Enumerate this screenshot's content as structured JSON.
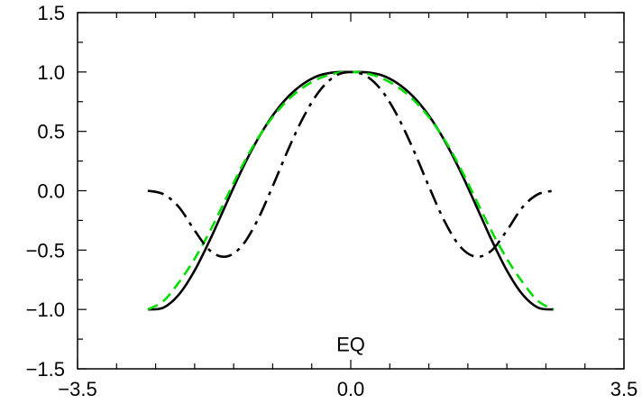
{
  "chart_data": {
    "type": "line",
    "title": "",
    "xlabel": "",
    "ylabel": "",
    "xlim": [
      -3.5,
      3.5
    ],
    "ylim": [
      -1.5,
      1.5
    ],
    "grid": false,
    "legend": "none",
    "x_ticks": [
      -3.5,
      0.0,
      3.5
    ],
    "x_tick_labels": [
      "−3.5",
      "0.0",
      "3.5"
    ],
    "y_ticks": [
      1.5,
      1.0,
      0.5,
      0.0,
      -0.5,
      -1.0,
      -1.5
    ],
    "y_tick_labels": [
      "1.5",
      "1.0",
      "0.5",
      "0.0",
      "−0.5",
      "−1.0",
      "−1.5"
    ],
    "annotations": [
      {
        "text": "EQ",
        "x": 0.0,
        "y": -1.29
      }
    ],
    "series": [
      {
        "color": "#000000",
        "style": "solid",
        "x": [
          -2.6,
          -2.4,
          -2.2,
          -2.0,
          -1.8,
          -1.6,
          -1.4,
          -1.2,
          -1.0,
          -0.8,
          -0.6,
          -0.4,
          -0.2,
          0.0,
          0.2,
          0.4,
          0.6,
          0.8,
          1.0,
          1.2,
          1.4,
          1.6,
          1.8,
          2.0,
          2.2,
          2.4,
          2.6
        ],
        "y": [
          -1.0,
          -0.985,
          -0.873,
          -0.672,
          -0.409,
          -0.117,
          0.17,
          0.424,
          0.633,
          0.793,
          0.904,
          0.972,
          0.997,
          1.0,
          0.997,
          0.972,
          0.904,
          0.793,
          0.633,
          0.424,
          0.17,
          -0.117,
          -0.409,
          -0.672,
          -0.873,
          -0.985,
          -1.0
        ]
      },
      {
        "color": "#00dd00",
        "style": "dashed",
        "x": [
          -2.6,
          -2.4,
          -2.2,
          -2.0,
          -1.8,
          -1.6,
          -1.4,
          -1.2,
          -1.0,
          -0.8,
          -0.6,
          -0.4,
          -0.2,
          0.0,
          0.2,
          0.4,
          0.6,
          0.8,
          1.0,
          1.2,
          1.4,
          1.6,
          1.8,
          2.0,
          2.2,
          2.4,
          2.6
        ],
        "y": [
          -1.0,
          -0.929,
          -0.77,
          -0.573,
          -0.336,
          -0.069,
          0.197,
          0.431,
          0.621,
          0.768,
          0.875,
          0.947,
          0.988,
          1.0,
          0.988,
          0.947,
          0.875,
          0.768,
          0.621,
          0.431,
          0.197,
          -0.069,
          -0.336,
          -0.573,
          -0.77,
          -0.929,
          -1.0
        ]
      },
      {
        "color": "#000000",
        "style": "dash-dot",
        "x": [
          -2.6,
          -2.4,
          -2.2,
          -2.0,
          -1.8,
          -1.6,
          -1.4,
          -1.2,
          -1.0,
          -0.8,
          -0.6,
          -0.4,
          -0.2,
          0.0,
          0.2,
          0.4,
          0.6,
          0.8,
          1.0,
          1.2,
          1.4,
          1.6,
          1.8,
          2.0,
          2.2,
          2.4,
          2.6
        ],
        "y": [
          0.0,
          -0.029,
          -0.139,
          -0.335,
          -0.506,
          -0.555,
          -0.469,
          -0.255,
          0.038,
          0.349,
          0.628,
          0.841,
          0.965,
          1.0,
          0.965,
          0.841,
          0.628,
          0.349,
          0.038,
          -0.255,
          -0.469,
          -0.555,
          -0.506,
          -0.335,
          -0.139,
          -0.029,
          0.0
        ]
      }
    ]
  }
}
